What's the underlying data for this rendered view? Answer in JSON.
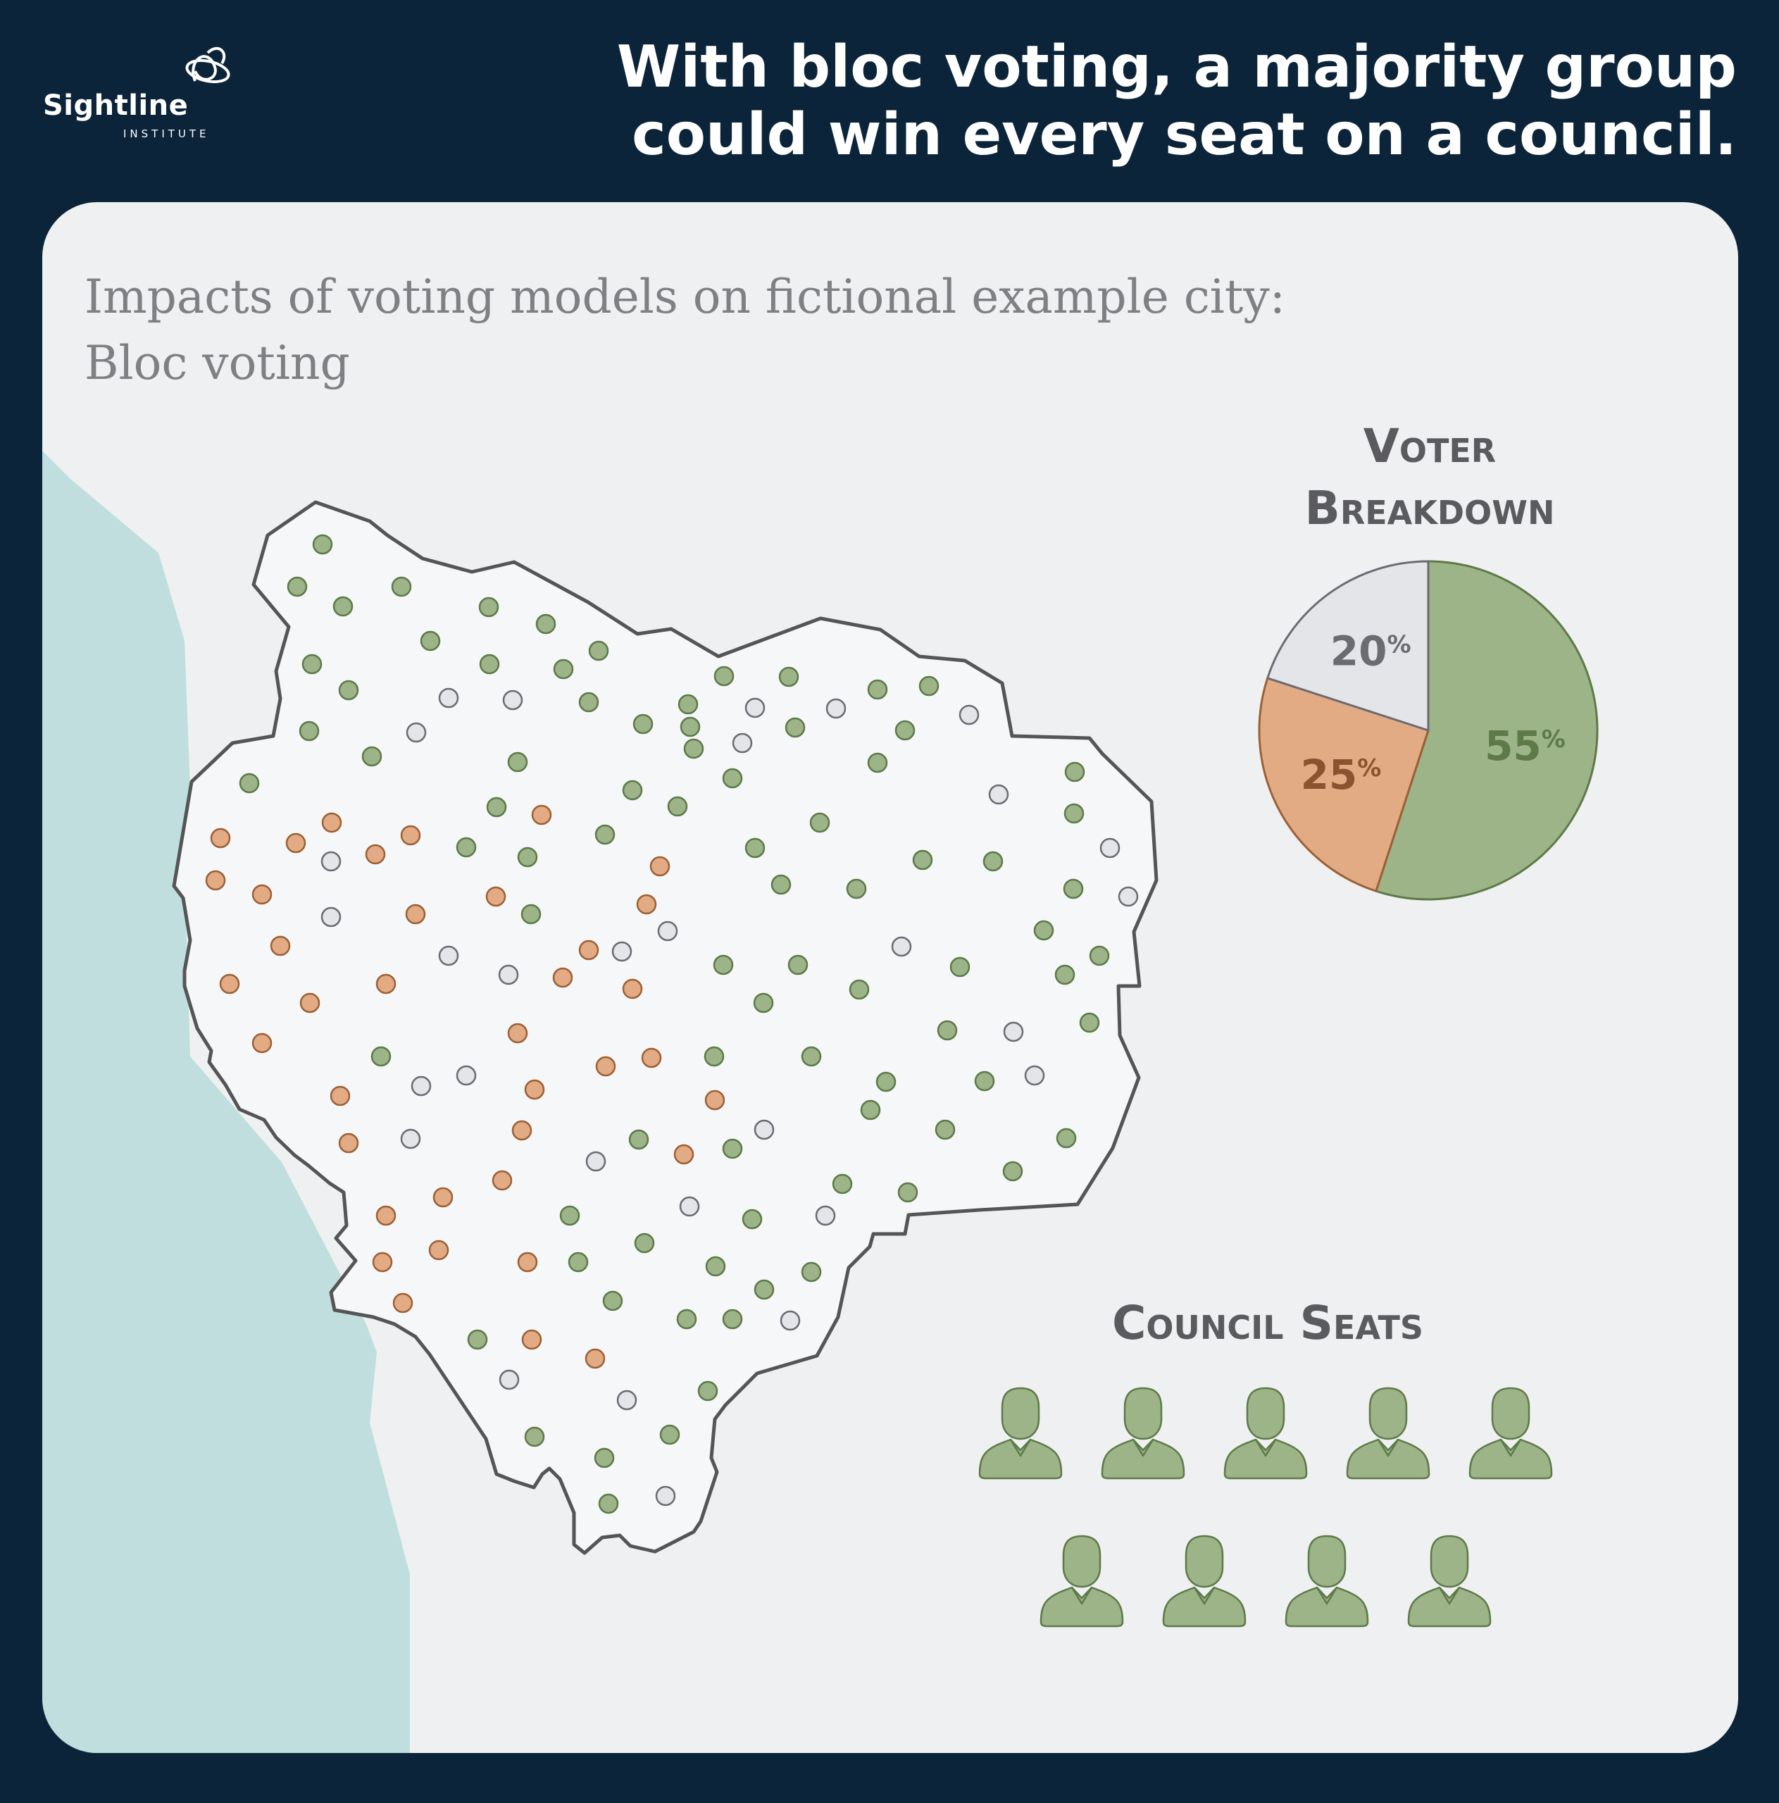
{
  "brand": {
    "name": "Sightline",
    "subname": "INSTITUTE"
  },
  "headline": {
    "line1": "With bloc voting, a majority group",
    "line2": "could win every seat on a council."
  },
  "subtitle": {
    "line1": "Impacts of voting models on fictional example city:",
    "line2": "Bloc voting"
  },
  "voter_breakdown": {
    "title_line1": "Voter",
    "title_line2": "Breakdown"
  },
  "council_seats": {
    "title": "Council Seats",
    "seats_total": 9,
    "seats_won_by_majority": 9
  },
  "colors": {
    "majority_green": "#9db388",
    "majority_green_stroke": "#5d7a48",
    "minority_orange": "#e3ab84",
    "minority_orange_stroke": "#9c6035",
    "other_gray": "#e4e5e8",
    "other_gray_stroke": "#6b6b72",
    "water": "#c1dedf",
    "city_fill": "#f6f7f9",
    "navy": "#0c243a"
  },
  "chart_data": {
    "type": "pie",
    "title": "Voter Breakdown",
    "slices": [
      {
        "label": "55%",
        "value": 55,
        "color": "#9db388",
        "stroke": "#5d7a48",
        "text_color": "#5d7a48"
      },
      {
        "label": "25%",
        "value": 25,
        "color": "#e3ab84",
        "stroke": "#9c6035",
        "text_color": "#8a5430"
      },
      {
        "label": "20%",
        "value": 20,
        "color": "#e4e5e8",
        "stroke": "#6b6b72",
        "text_color": "#6b6b72"
      }
    ]
  }
}
